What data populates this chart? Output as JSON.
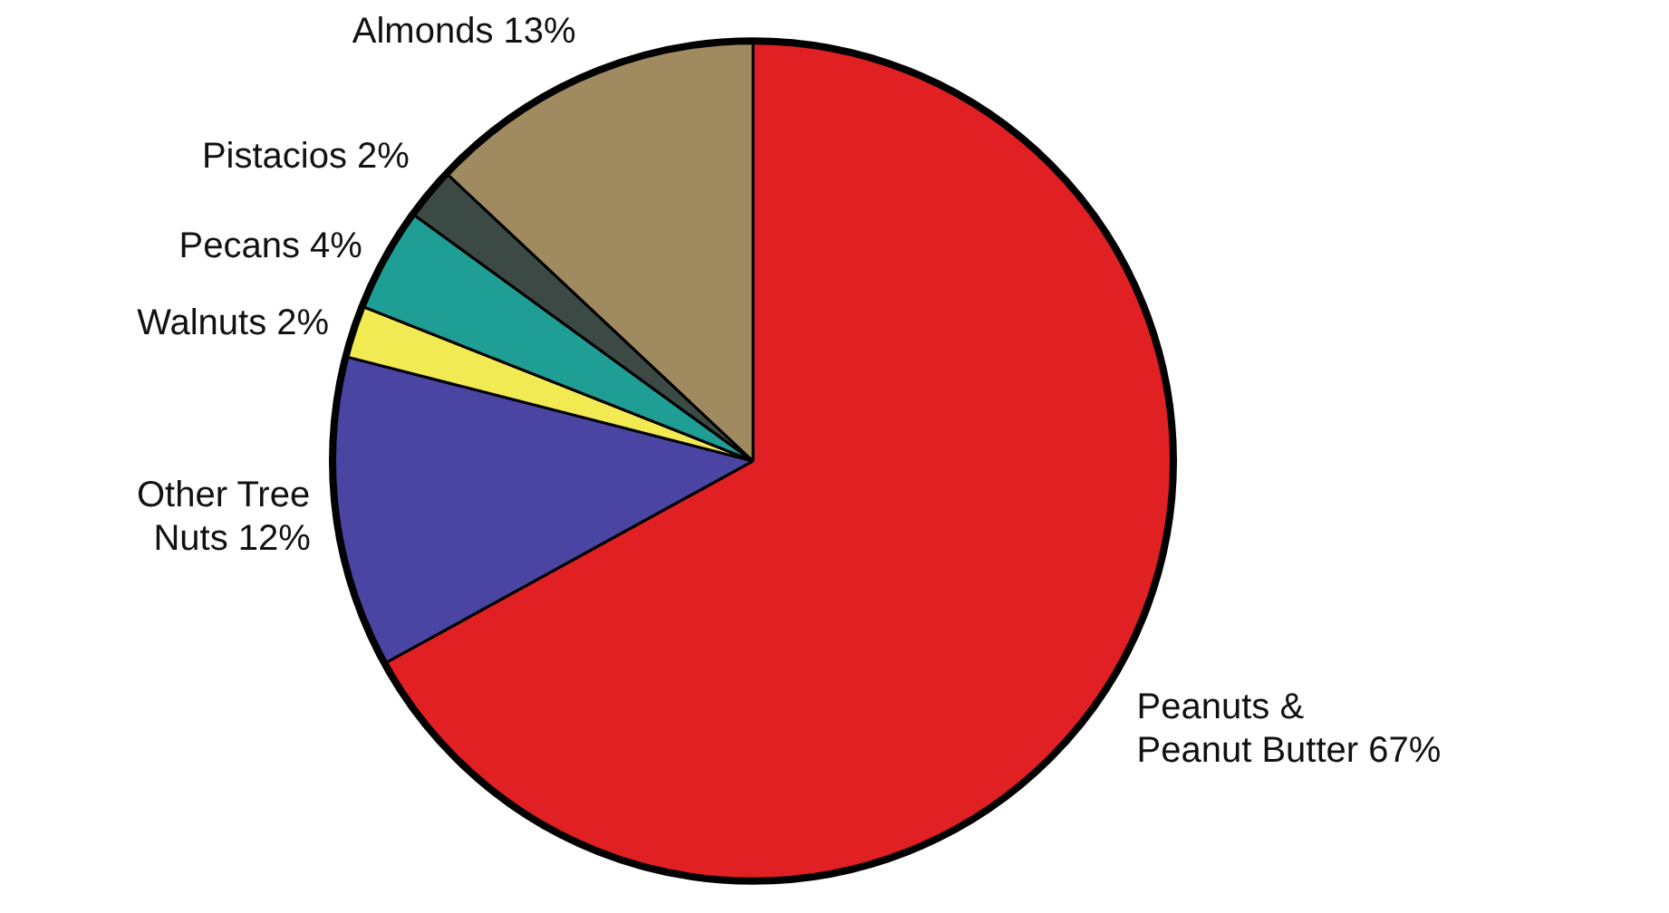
{
  "chart_data": {
    "type": "pie",
    "categories": [
      "Peanuts &\nPeanut Butter",
      "Other Tree\nNuts",
      "Walnuts",
      "Pecans",
      "Pistacios",
      "Almonds"
    ],
    "values": [
      67,
      12,
      2,
      4,
      2,
      13
    ],
    "value_labels": [
      "67%",
      "12%",
      "2%",
      "4%",
      "2%",
      "13%"
    ],
    "colors": [
      "#e02022",
      "#4a44a2",
      "#f2ea52",
      "#1f9e96",
      "#3b4a44",
      "#a08a60"
    ]
  }
}
